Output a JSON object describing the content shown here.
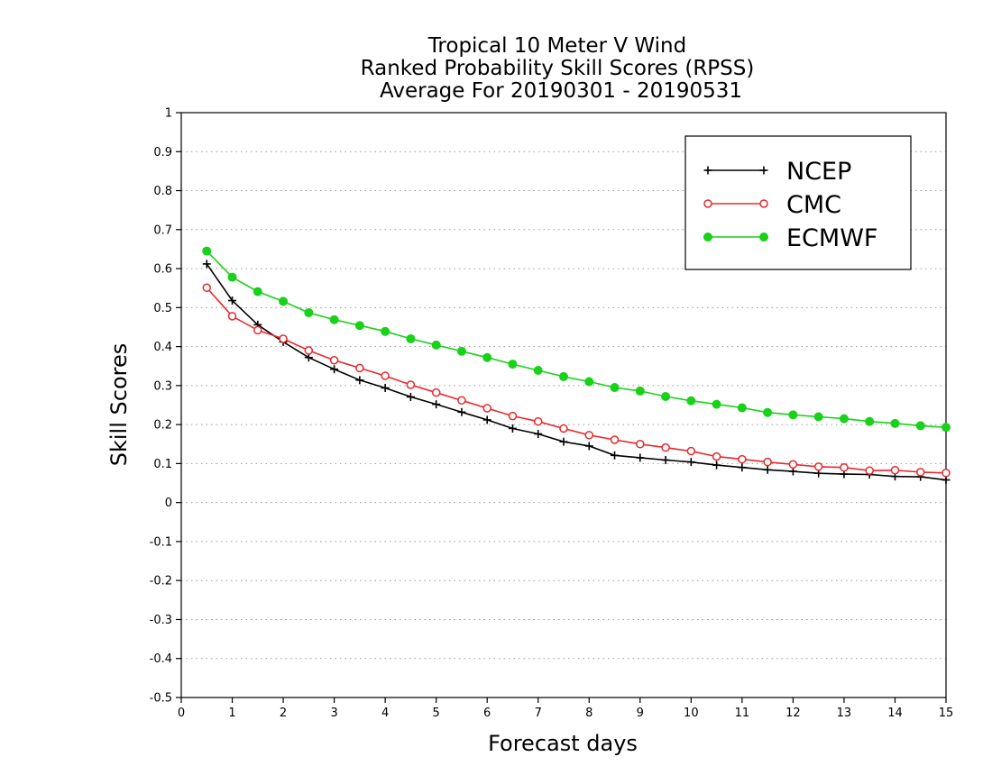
{
  "chart_data": {
    "type": "line",
    "title": [
      "Tropical 10 Meter V Wind",
      "Ranked Probability Skill Scores (RPSS)",
      "Average For 20190301 - 20190531"
    ],
    "xlabel": "Forecast days",
    "ylabel": "Skill Scores",
    "xlim": [
      0,
      15
    ],
    "ylim": [
      -0.5,
      1
    ],
    "xticks": [
      0,
      1,
      2,
      3,
      4,
      5,
      6,
      7,
      8,
      9,
      10,
      11,
      12,
      13,
      14,
      15
    ],
    "yticks": [
      -0.5,
      -0.4,
      -0.3,
      -0.2,
      -0.1,
      0,
      0.1,
      0.2,
      0.3,
      0.4,
      0.5,
      0.6,
      0.7,
      0.8,
      0.9,
      1
    ],
    "ytick_labels": [
      "-0.5",
      "-0.4",
      "-0.3",
      "-0.2",
      "-0.1",
      "0",
      "0.1",
      "0.2",
      "0.3",
      "0.4",
      "0.5",
      "0.6",
      "0.7",
      "0.8",
      "0.9",
      "1"
    ],
    "grid": "horizontal dotted",
    "legend": "top-right",
    "x": [
      0.5,
      1,
      1.5,
      2,
      2.5,
      3,
      3.5,
      4,
      4.5,
      5,
      5.5,
      6,
      6.5,
      7,
      7.5,
      8,
      8.5,
      9,
      9.5,
      10,
      10.5,
      11,
      11.5,
      12,
      12.5,
      13,
      13.5,
      14,
      14.5,
      15
    ],
    "series": [
      {
        "name": "NCEP",
        "color": "#000000",
        "marker": "plus",
        "values": [
          0.612,
          0.518,
          0.456,
          0.412,
          0.372,
          0.342,
          0.314,
          0.294,
          0.271,
          0.252,
          0.232,
          0.212,
          0.19,
          0.176,
          0.156,
          0.145,
          0.121,
          0.115,
          0.109,
          0.104,
          0.096,
          0.09,
          0.084,
          0.08,
          0.075,
          0.073,
          0.072,
          0.067,
          0.066,
          0.058
        ]
      },
      {
        "name": "CMC",
        "color": "#e8282d",
        "marker": "open-circle",
        "values": [
          0.551,
          0.478,
          0.442,
          0.42,
          0.39,
          0.365,
          0.345,
          0.325,
          0.302,
          0.282,
          0.262,
          0.242,
          0.222,
          0.208,
          0.19,
          0.173,
          0.161,
          0.15,
          0.141,
          0.132,
          0.118,
          0.111,
          0.104,
          0.098,
          0.092,
          0.09,
          0.082,
          0.083,
          0.078,
          0.076
        ]
      },
      {
        "name": "ECMWF",
        "color": "#19d119",
        "marker": "filled-circle",
        "values": [
          0.645,
          0.578,
          0.541,
          0.516,
          0.487,
          0.469,
          0.454,
          0.439,
          0.42,
          0.404,
          0.388,
          0.372,
          0.355,
          0.339,
          0.323,
          0.31,
          0.295,
          0.286,
          0.272,
          0.261,
          0.252,
          0.243,
          0.231,
          0.225,
          0.22,
          0.215,
          0.208,
          0.203,
          0.197,
          0.193
        ]
      }
    ]
  }
}
